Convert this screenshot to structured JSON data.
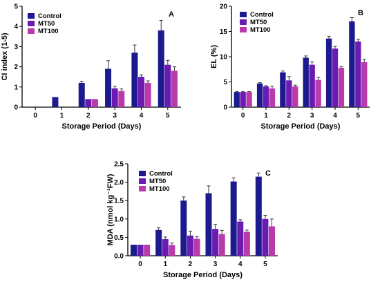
{
  "colors": {
    "Control": "#1c1a8e",
    "MT50": "#6a1bb2",
    "MT100": "#b83aab",
    "error_bar": "#333333"
  },
  "chart_data": [
    {
      "type": "bar",
      "panel": "A",
      "xlabel": "Storage Period (Days)",
      "ylabel": "CI index (1-5)",
      "categories": [
        "0",
        "1",
        "2",
        "3",
        "4",
        "5"
      ],
      "ylim": [
        0,
        5
      ],
      "yticks": [
        "0",
        "1",
        "2",
        "3",
        "4",
        "5"
      ],
      "series": [
        {
          "name": "Control",
          "values": [
            0,
            0.5,
            1.2,
            1.9,
            2.7,
            3.8
          ],
          "errors": [
            0,
            0,
            0.08,
            0.4,
            0.38,
            0.5
          ]
        },
        {
          "name": "MT50",
          "values": [
            0,
            0,
            0.4,
            0.93,
            1.5,
            2.1
          ],
          "errors": [
            0,
            0,
            0,
            0.1,
            0.1,
            0.22
          ]
        },
        {
          "name": "MT100",
          "values": [
            0,
            0,
            0.4,
            0.8,
            1.2,
            1.8
          ],
          "errors": [
            0,
            0,
            0,
            0.1,
            0.1,
            0.2
          ]
        }
      ]
    },
    {
      "type": "bar",
      "panel": "B",
      "xlabel": "Storage Period (Days)",
      "ylabel": "EL (%)",
      "categories": [
        "0",
        "1",
        "2",
        "3",
        "4",
        "5"
      ],
      "ylim": [
        0,
        20
      ],
      "yticks": [
        "0",
        "5",
        "10",
        "15",
        "20"
      ],
      "series": [
        {
          "name": "Control",
          "values": [
            3.0,
            4.7,
            6.9,
            9.8,
            13.6,
            17.0
          ],
          "errors": [
            0.1,
            0.15,
            0.25,
            0.35,
            0.45,
            0.75
          ]
        },
        {
          "name": "MT50",
          "values": [
            3.0,
            4.1,
            5.3,
            8.4,
            11.6,
            13.0
          ],
          "errors": [
            0.1,
            0.15,
            0.75,
            0.55,
            0.45,
            0.45
          ]
        },
        {
          "name": "MT100",
          "values": [
            3.0,
            3.7,
            4.1,
            5.4,
            7.8,
            8.9
          ],
          "errors": [
            0.1,
            0.45,
            0.25,
            0.5,
            0.25,
            0.55
          ]
        }
      ]
    },
    {
      "type": "bar",
      "panel": "C",
      "xlabel": "Storage Period (Days)",
      "ylabel": "MDA (nmol kg⁻¹FW)",
      "categories": [
        "0",
        "1",
        "2",
        "3",
        "4",
        "5"
      ],
      "ylim": [
        0,
        2.5
      ],
      "yticks": [
        "0.0",
        "0.5",
        "1.0",
        "1.5",
        "2.0",
        "2.5"
      ],
      "series": [
        {
          "name": "Control",
          "values": [
            0.3,
            0.7,
            1.5,
            1.7,
            2.02,
            2.15
          ],
          "errors": [
            0,
            0.06,
            0.1,
            0.2,
            0.1,
            0.1
          ]
        },
        {
          "name": "MT50",
          "values": [
            0.3,
            0.45,
            0.55,
            0.73,
            0.93,
            1.0
          ],
          "errors": [
            0,
            0.06,
            0.12,
            0.12,
            0.05,
            0.1
          ]
        },
        {
          "name": "MT100",
          "values": [
            0.3,
            0.29,
            0.46,
            0.59,
            0.65,
            0.8
          ],
          "errors": [
            0,
            0.06,
            0.06,
            0.1,
            0.05,
            0.2
          ]
        }
      ]
    }
  ]
}
